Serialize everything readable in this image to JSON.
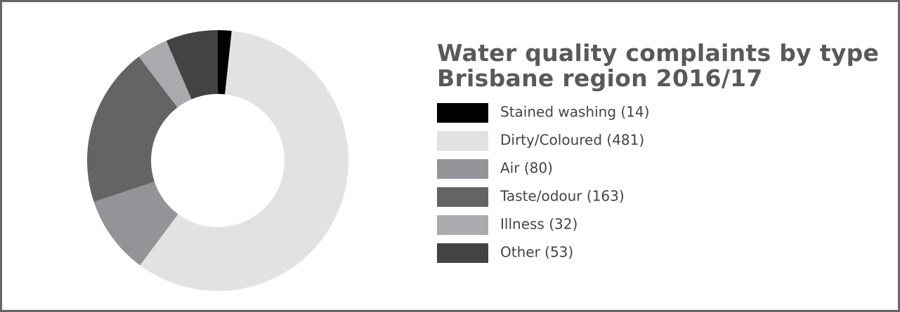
{
  "chart_data": {
    "type": "donut",
    "title": "Water quality complaints by type",
    "subtitle": "Brisbane region 2016/17",
    "categories": [
      "Stained washing (14)",
      "Dirty/Coloured (481)",
      "Air (80)",
      "Taste/odour (163)",
      "Illness (32)",
      "Other (53)"
    ],
    "values": [
      14,
      481,
      80,
      163,
      32,
      53
    ],
    "colors": [
      "#000000",
      "#e1e2e4",
      "#929497",
      "#636466",
      "#a8aaad",
      "#434244"
    ],
    "legend": "right"
  }
}
